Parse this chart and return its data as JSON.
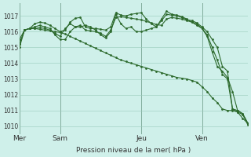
{
  "xlabel": "Pression niveau de la mer( hPa )",
  "bg_color": "#cff0ea",
  "grid_color": "#99ccbb",
  "line_color": "#2d6a2d",
  "ylim": [
    1009.5,
    1017.8
  ],
  "yticks": [
    1010,
    1011,
    1012,
    1013,
    1014,
    1015,
    1016,
    1017
  ],
  "xtick_labels": [
    "Mer",
    "Sam",
    "Jeu",
    "Ven"
  ],
  "xtick_positions": [
    0,
    8,
    24,
    36
  ],
  "total_points": 46,
  "series1_x": [
    0,
    1,
    2,
    3,
    4,
    5,
    6,
    7,
    8,
    9,
    10,
    11,
    12,
    13,
    14,
    15,
    16,
    17,
    18,
    19,
    20,
    21,
    22,
    23,
    24,
    25,
    26,
    27,
    28,
    29,
    30,
    31,
    32,
    33,
    34,
    35,
    36,
    37,
    38,
    39,
    40,
    41,
    42,
    43,
    44,
    45
  ],
  "series1": [
    1015.0,
    1016.1,
    1016.2,
    1016.2,
    1016.15,
    1016.1,
    1016.05,
    1016.0,
    1015.95,
    1015.85,
    1015.7,
    1015.55,
    1015.4,
    1015.25,
    1015.1,
    1014.95,
    1014.8,
    1014.65,
    1014.5,
    1014.35,
    1014.2,
    1014.1,
    1014.0,
    1013.9,
    1013.8,
    1013.7,
    1013.6,
    1013.5,
    1013.4,
    1013.3,
    1013.2,
    1013.1,
    1013.05,
    1013.0,
    1012.9,
    1012.8,
    1012.5,
    1012.2,
    1011.8,
    1011.5,
    1011.1,
    1011.0,
    1011.0,
    1010.9,
    1010.5,
    1010.2
  ],
  "series2_x": [
    0,
    1,
    2,
    3,
    4,
    5,
    6,
    7,
    8,
    9,
    10,
    11,
    12,
    13,
    14,
    15,
    16,
    17,
    18,
    19,
    20,
    21,
    22,
    23,
    24,
    25,
    26,
    27,
    28,
    29,
    30,
    31,
    32,
    33,
    34,
    35,
    36,
    37,
    38,
    39,
    40,
    41,
    42,
    43,
    44,
    45
  ],
  "series2": [
    1015.5,
    1016.1,
    1016.2,
    1016.2,
    1016.25,
    1016.2,
    1016.1,
    1015.9,
    1015.7,
    1016.2,
    1016.5,
    1016.3,
    1016.3,
    1016.4,
    1016.3,
    1016.1,
    1015.8,
    1015.6,
    1016.0,
    1017.1,
    1016.5,
    1016.2,
    1016.3,
    1016.0,
    1016.0,
    1016.1,
    1016.2,
    1016.3,
    1016.7,
    1017.1,
    1017.05,
    1017.0,
    1016.9,
    1016.75,
    1016.7,
    1016.55,
    1016.3,
    1016.0,
    1015.5,
    1015.0,
    1013.8,
    1013.5,
    1011.1,
    1011.0,
    1010.8,
    1010.2
  ],
  "series3_x": [
    0,
    1,
    2,
    3,
    4,
    5,
    6,
    7,
    8,
    9,
    10,
    11,
    12,
    13,
    14,
    15,
    16,
    17,
    18,
    19,
    20,
    21,
    22,
    23,
    24,
    25,
    26,
    27,
    28,
    29,
    30,
    31,
    32,
    33,
    34,
    35,
    36,
    37,
    38,
    39,
    40,
    41,
    42,
    43,
    44,
    45
  ],
  "series3": [
    1015.2,
    1016.1,
    1016.2,
    1016.5,
    1016.6,
    1016.55,
    1016.4,
    1016.2,
    1016.0,
    1016.1,
    1016.6,
    1016.85,
    1016.9,
    1016.3,
    1016.2,
    1016.2,
    1016.15,
    1016.1,
    1016.3,
    1017.2,
    1017.05,
    1017.0,
    1017.1,
    1017.15,
    1017.2,
    1016.8,
    1016.5,
    1016.3,
    1016.8,
    1017.3,
    1017.1,
    1017.05,
    1016.95,
    1016.8,
    1016.6,
    1016.4,
    1016.2,
    1015.7,
    1014.7,
    1013.8,
    1013.5,
    1013.1,
    1012.2,
    1011.0,
    1010.8,
    1010.2
  ],
  "series4_x": [
    0,
    1,
    2,
    3,
    4,
    5,
    6,
    7,
    8,
    9,
    10,
    11,
    12,
    13,
    14,
    15,
    16,
    17,
    18,
    19,
    20,
    21,
    22,
    23,
    24,
    25,
    26,
    27,
    28,
    29,
    30,
    31,
    32,
    33,
    34,
    35,
    36,
    37,
    38,
    39,
    40,
    41,
    42,
    43,
    44,
    45
  ],
  "series4": [
    1015.2,
    1016.1,
    1016.2,
    1016.3,
    1016.4,
    1016.3,
    1016.2,
    1015.8,
    1015.5,
    1015.5,
    1016.0,
    1016.3,
    1016.4,
    1016.1,
    1016.05,
    1016.0,
    1015.9,
    1015.7,
    1016.1,
    1016.9,
    1016.95,
    1016.9,
    1016.85,
    1016.8,
    1016.75,
    1016.65,
    1016.55,
    1016.45,
    1016.4,
    1016.8,
    1016.9,
    1016.85,
    1016.8,
    1016.7,
    1016.6,
    1016.5,
    1016.2,
    1015.8,
    1015.0,
    1014.2,
    1013.3,
    1013.0,
    1011.1,
    1010.9,
    1010.75,
    1010.1
  ]
}
